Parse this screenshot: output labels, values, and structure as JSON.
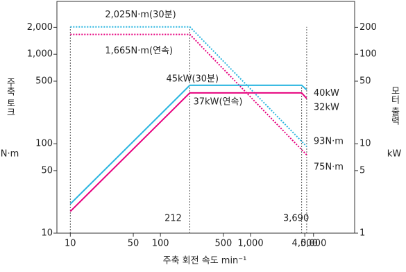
{
  "chart_data": {
    "type": "line",
    "log_x": true,
    "log_y": true,
    "x_label": "주축 회전 속도  min⁻¹",
    "y_label": [
      "주축 토크",
      "N·m"
    ],
    "y2_label": [
      "모터 출력",
      "kW"
    ],
    "xlim": [
      7.1,
      14300
    ],
    "ylim": [
      10,
      3900
    ],
    "y2lim": [
      1,
      390
    ],
    "xticks": [
      10,
      50,
      100,
      500,
      {
        "value": 1000,
        "label": "1,000"
      },
      {
        "value": 4000,
        "label": "4,000"
      },
      {
        "value": 5000,
        "label": "5,000"
      }
    ],
    "yticks": [
      10,
      50,
      100,
      500,
      {
        "value": 1000,
        "label": "1,000"
      },
      {
        "value": 2000,
        "label": "2,000"
      }
    ],
    "y2ticks": [
      1,
      5,
      10,
      50,
      100,
      200
    ],
    "markers": [
      {
        "value": 212,
        "label": "212"
      },
      {
        "value": 3690,
        "label": "3,690"
      }
    ],
    "series": [
      {
        "color": "#29b5e0",
        "style": "dotted",
        "axis": "y",
        "x": [
          10,
          212,
          4200
        ],
        "values": [
          2025,
          2025,
          93
        ],
        "value_labels": [
          "2,025N·m(30분)",
          null,
          "93N·m"
        ]
      },
      {
        "color": "#e6007e",
        "style": "dotted",
        "axis": "y",
        "x": [
          10,
          212,
          4200
        ],
        "values": [
          1665,
          1665,
          75
        ],
        "value_labels": [
          "1,665N·m(연속)",
          null,
          "75N·m"
        ]
      },
      {
        "color": "#29b5e0",
        "style": "solid",
        "axis": "y2",
        "x": [
          10,
          212,
          3690,
          4200
        ],
        "values": [
          2.12,
          45,
          45,
          40
        ],
        "value_labels": [
          null,
          "45kW(30분)",
          null,
          "40kW"
        ]
      },
      {
        "color": "#e6007e",
        "style": "solid",
        "axis": "y2",
        "x": [
          10,
          212,
          3690,
          4200
        ],
        "values": [
          1.75,
          37,
          37,
          32
        ],
        "value_labels": [
          null,
          "37kW(연속)",
          null,
          "32kW"
        ]
      }
    ]
  }
}
